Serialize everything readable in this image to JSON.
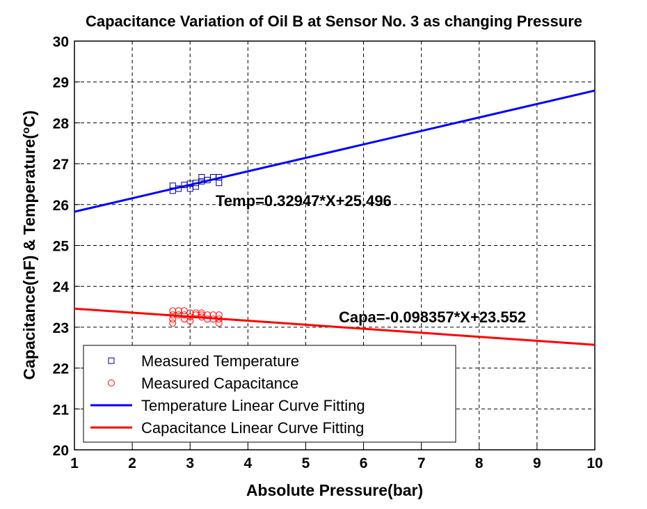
{
  "chart_data": {
    "type": "scatter",
    "title": "Capacitance Variation of Oil B at Sensor No. 3 as changing Pressure",
    "xlabel": "Absolute Pressure(bar)",
    "ylabel": "Capacitance(nF) & Temperature(",
    "ylabel_superscript": "o",
    "ylabel_end": "C)",
    "xlim": [
      1,
      10
    ],
    "xticks": [
      1,
      2,
      3,
      4,
      5,
      6,
      7,
      8,
      9,
      10
    ],
    "ylim": [
      20,
      30
    ],
    "yticks": [
      20,
      21,
      22,
      23,
      24,
      25,
      26,
      27,
      28,
      29,
      30
    ],
    "grid": true,
    "legend": "lower left",
    "annotations": [
      "Temp=0.32947*X+25.496",
      "Capa=-0.098357*X+23.552"
    ],
    "series": [
      {
        "name": "Measured Temperature",
        "type": "scatter",
        "marker": "square",
        "color": "#00008b",
        "x": [
          2.7,
          2.7,
          2.8,
          2.9,
          3.0,
          3.0,
          3.1,
          3.1,
          3.2,
          3.2,
          3.3,
          3.4,
          3.5,
          3.5
        ],
        "values": [
          26.46,
          26.34,
          26.39,
          26.48,
          26.51,
          26.39,
          26.53,
          26.44,
          26.67,
          26.57,
          26.6,
          26.67,
          26.67,
          26.53
        ]
      },
      {
        "name": "Measured Capacitance",
        "type": "scatter",
        "marker": "circle",
        "color": "#ff0000",
        "x": [
          2.7,
          2.7,
          2.7,
          2.7,
          2.8,
          2.8,
          2.9,
          2.9,
          2.9,
          3.0,
          3.0,
          3.0,
          3.1,
          3.1,
          3.2,
          3.2,
          3.2,
          3.3,
          3.3,
          3.4,
          3.4,
          3.5,
          3.5,
          3.5
        ],
        "values": [
          23.4,
          23.3,
          23.2,
          23.1,
          23.4,
          23.3,
          23.4,
          23.3,
          23.2,
          23.35,
          23.25,
          23.15,
          23.35,
          23.3,
          23.35,
          23.3,
          23.25,
          23.3,
          23.2,
          23.3,
          23.2,
          23.3,
          23.2,
          23.1
        ]
      },
      {
        "name": "Temperature Linear Curve Fitting",
        "type": "line",
        "color": "#0000ff",
        "x": [
          1,
          10
        ],
        "values": [
          25.825,
          28.79
        ]
      },
      {
        "name": "Capacitance Linear Curve Fitting",
        "type": "line",
        "color": "#ff0000",
        "x": [
          1,
          10
        ],
        "values": [
          23.454,
          22.568
        ]
      }
    ]
  }
}
